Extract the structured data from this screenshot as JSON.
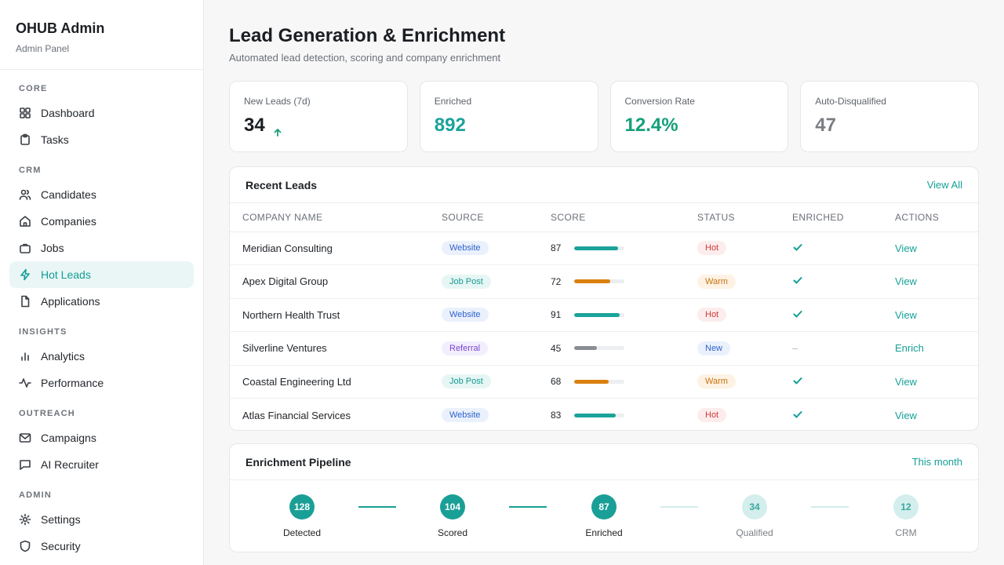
{
  "app": {
    "title": "OHUB Admin",
    "subtitle": "Admin Panel"
  },
  "sidebar": {
    "sections": [
      {
        "label": "CORE",
        "items": [
          {
            "label": "Dashboard",
            "icon": "grid-icon"
          },
          {
            "label": "Tasks",
            "icon": "clipboard-icon"
          }
        ]
      },
      {
        "label": "CRM",
        "items": [
          {
            "label": "Candidates",
            "icon": "users-icon"
          },
          {
            "label": "Companies",
            "icon": "home-icon"
          },
          {
            "label": "Jobs",
            "icon": "briefcase-icon"
          },
          {
            "label": "Hot Leads",
            "icon": "lightning-icon",
            "active": true
          },
          {
            "label": "Applications",
            "icon": "file-icon"
          }
        ]
      },
      {
        "label": "INSIGHTS",
        "items": [
          {
            "label": "Analytics",
            "icon": "bar-chart-icon"
          },
          {
            "label": "Performance",
            "icon": "activity-icon"
          }
        ]
      },
      {
        "label": "OUTREACH",
        "items": [
          {
            "label": "Campaigns",
            "icon": "mail-icon"
          },
          {
            "label": "AI Recruiter",
            "icon": "message-icon"
          }
        ]
      },
      {
        "label": "ADMIN",
        "items": [
          {
            "label": "Settings",
            "icon": "gear-icon"
          },
          {
            "label": "Security",
            "icon": "shield-icon"
          }
        ]
      }
    ]
  },
  "page": {
    "title": "Lead Generation & Enrichment",
    "subtitle": "Automated lead detection, scoring and company enrichment"
  },
  "stats": [
    {
      "label": "New Leads (7d)",
      "value": "34",
      "color": "#1b1e22",
      "trend": "up-arrow-icon"
    },
    {
      "label": "Enriched",
      "value": "892",
      "color": "#1aa39a"
    },
    {
      "label": "Conversion Rate",
      "value": "12.4%",
      "color": "#14a07a"
    },
    {
      "label": "Auto-Disqualified",
      "value": "47",
      "color": "#7a7d82"
    }
  ],
  "recent_leads": {
    "title": "Recent Leads",
    "view_all": "View All",
    "columns": [
      "COMPANY NAME",
      "SOURCE",
      "SCORE",
      "STATUS",
      "ENRICHED",
      "ACTIONS"
    ],
    "rows": [
      {
        "company": "Meridian Consulting",
        "source": "Website",
        "score": 87,
        "status": "Hot",
        "enriched": true,
        "action": "View"
      },
      {
        "company": "Apex Digital Group",
        "source": "Job Post",
        "score": 72,
        "status": "Warm",
        "enriched": true,
        "action": "View"
      },
      {
        "company": "Northern Health Trust",
        "source": "Website",
        "score": 91,
        "status": "Hot",
        "enriched": true,
        "action": "View"
      },
      {
        "company": "Silverline Ventures",
        "source": "Referral",
        "score": 45,
        "status": "New",
        "enriched": false,
        "action": "Enrich"
      },
      {
        "company": "Coastal Engineering Ltd",
        "source": "Job Post",
        "score": 68,
        "status": "Warm",
        "enriched": true,
        "action": "View"
      },
      {
        "company": "Atlas Financial Services",
        "source": "Website",
        "score": 83,
        "status": "Hot",
        "enriched": true,
        "action": "View"
      }
    ],
    "score_colors": {
      "hot": "#1aa39a",
      "warm": "#d9800f",
      "new": "#8a8d92"
    }
  },
  "pipeline": {
    "title": "Enrichment Pipeline",
    "period": "This month",
    "stages": [
      {
        "count": "128",
        "label": "Detected",
        "done": true
      },
      {
        "count": "104",
        "label": "Scored",
        "done": true
      },
      {
        "count": "87",
        "label": "Enriched",
        "done": true
      },
      {
        "count": "34",
        "label": "Qualified",
        "done": false
      },
      {
        "count": "12",
        "label": "CRM",
        "done": false
      }
    ]
  }
}
